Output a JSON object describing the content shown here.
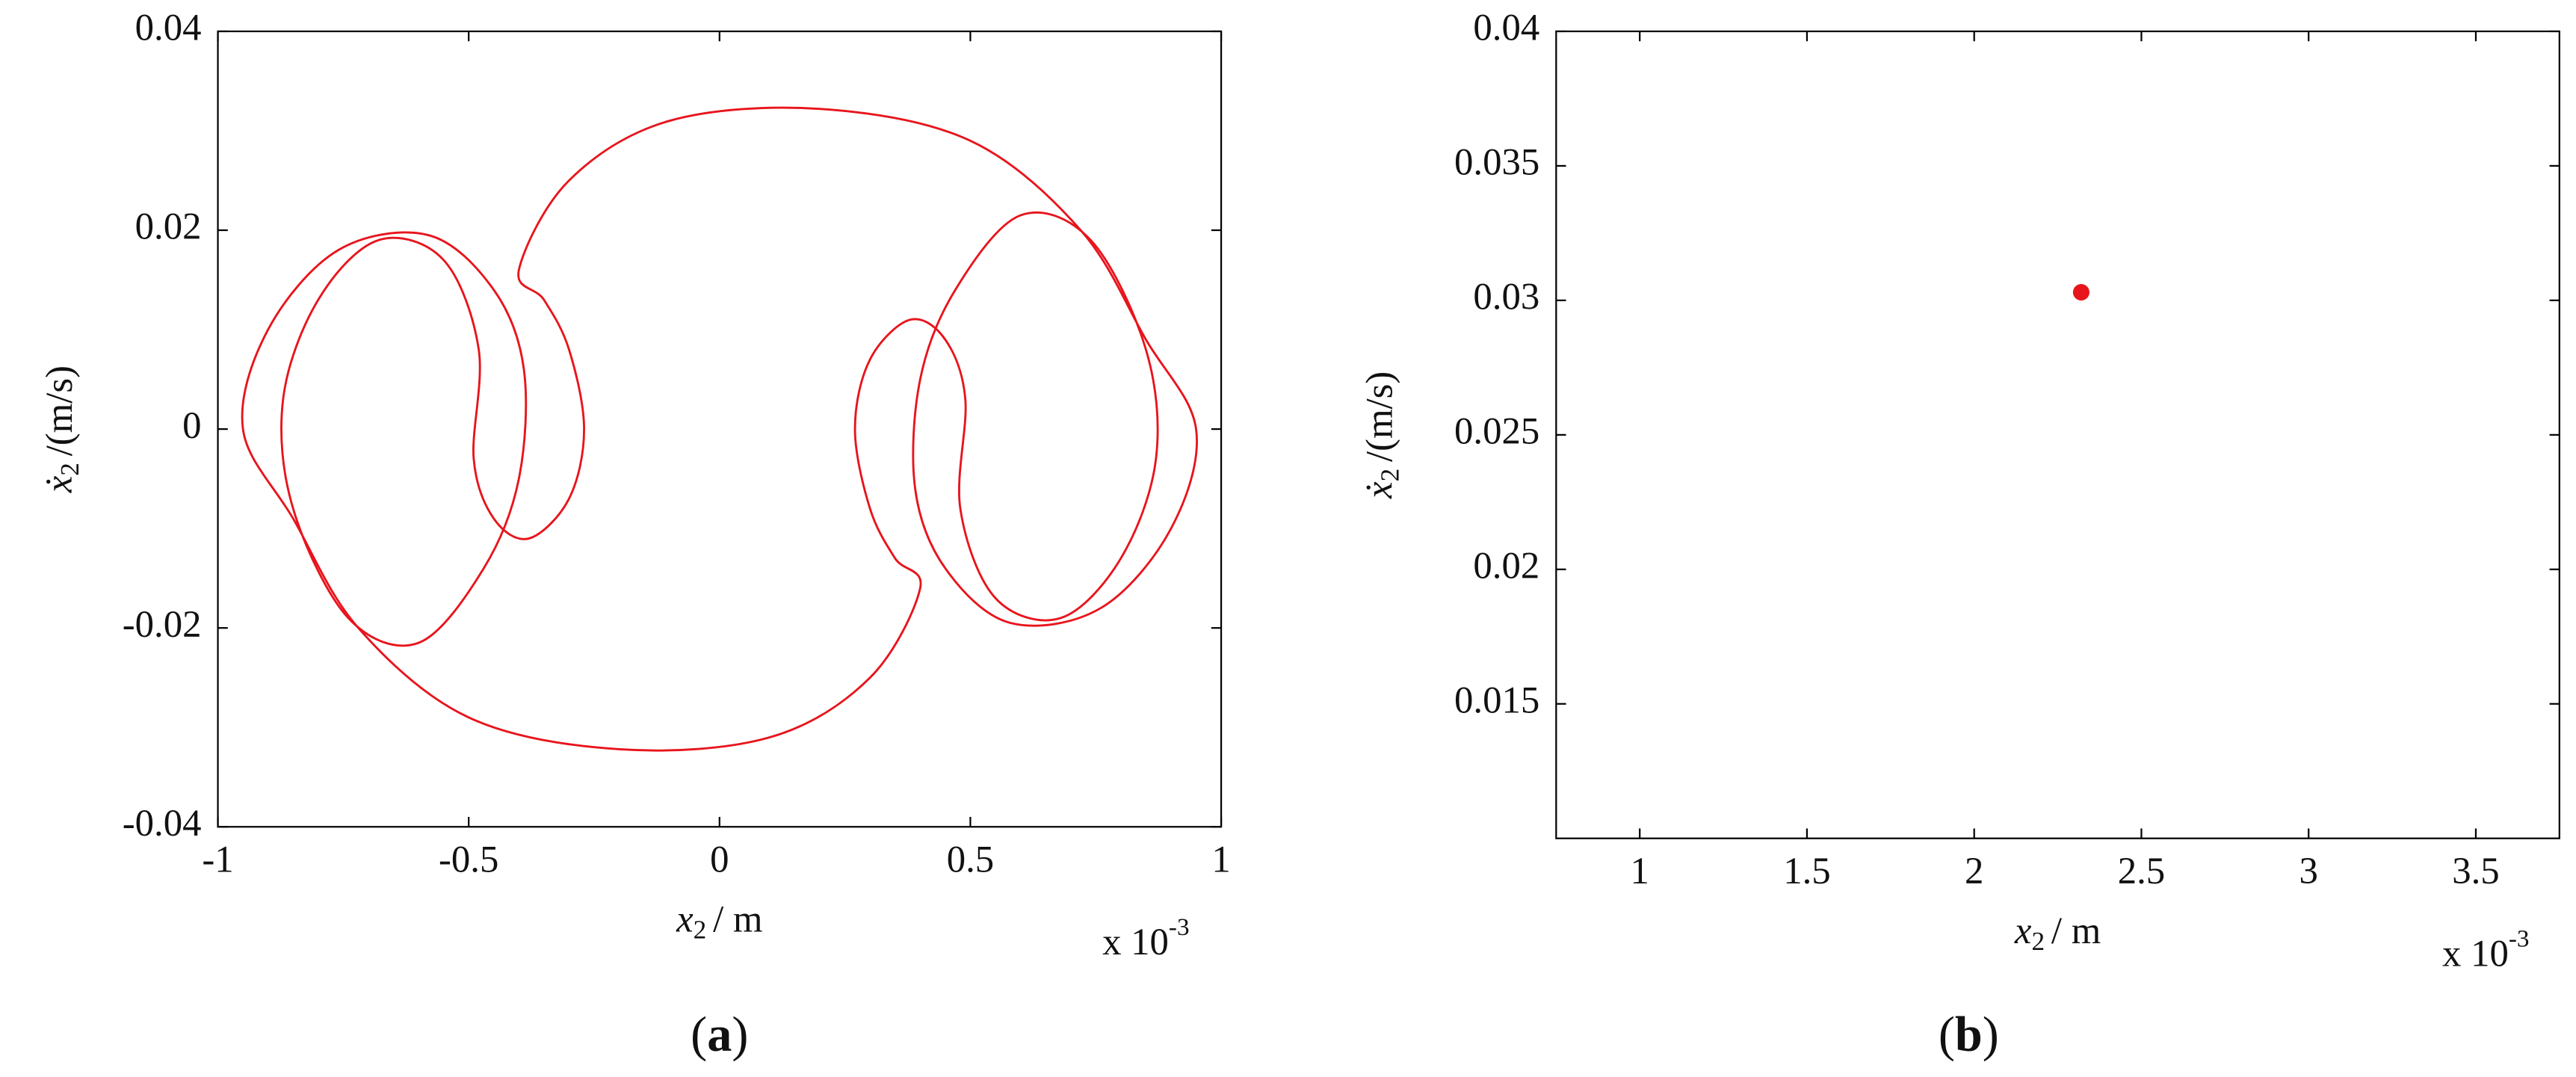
{
  "chart_data": [
    {
      "type": "line",
      "color": "#e8141c",
      "xlabel": {
        "symbol": "x",
        "subscript": "2",
        "unit": "/ m"
      },
      "ylabel": {
        "symbol": "ẋ",
        "subscript": "2",
        "unit": "/(m/s)"
      },
      "multiplier": {
        "base": "x 10",
        "exponent": "-3"
      },
      "caption": {
        "open": "(",
        "letter": "a",
        "close": ")"
      },
      "xlim": [
        -1,
        1
      ],
      "ylim": [
        -0.04,
        0.04
      ],
      "xticks": [
        -1,
        -0.5,
        0,
        0.5,
        1
      ],
      "yticks": [
        -0.04,
        -0.02,
        0,
        0.02,
        0.04
      ],
      "x": [
        -0.4,
        -0.3,
        -0.1,
        0.2,
        0.5,
        0.72,
        0.85,
        0.95,
        0.9,
        0.76,
        0.58,
        0.45,
        0.39,
        0.4,
        0.47,
        0.6,
        0.74,
        0.85,
        0.87,
        0.8,
        0.68,
        0.55,
        0.48,
        0.49,
        0.45,
        0.38,
        0.3,
        0.27,
        0.3,
        0.35,
        0.4,
        0.3,
        0.1,
        -0.2,
        -0.5,
        -0.72,
        -0.85,
        -0.95,
        -0.9,
        -0.76,
        -0.58,
        -0.45,
        -0.39,
        -0.4,
        -0.47,
        -0.6,
        -0.74,
        -0.85,
        -0.87,
        -0.8,
        -0.68,
        -0.55,
        -0.48,
        -0.49,
        -0.45,
        -0.38,
        -0.3,
        -0.27,
        -0.3,
        -0.35
      ],
      "y": [
        0.016,
        0.025,
        0.031,
        0.0322,
        0.029,
        0.02,
        0.009,
        0,
        -0.01,
        -0.018,
        -0.0195,
        -0.014,
        -0.006,
        0.005,
        0.014,
        0.0215,
        0.019,
        0.008,
        -0.003,
        -0.013,
        -0.019,
        -0.017,
        -0.008,
        0.003,
        0.009,
        0.011,
        0.007,
        0,
        -0.008,
        -0.013,
        -0.016,
        -0.025,
        -0.031,
        -0.0322,
        -0.029,
        -0.02,
        -0.009,
        0,
        0.01,
        0.018,
        0.0195,
        0.014,
        0.006,
        -0.005,
        -0.014,
        -0.0215,
        -0.019,
        -0.008,
        0.003,
        0.013,
        0.019,
        0.017,
        0.008,
        -0.003,
        -0.009,
        -0.011,
        -0.007,
        0,
        0.008,
        0.013
      ]
    },
    {
      "type": "scatter",
      "color": "#e8141c",
      "xlabel": {
        "symbol": "x",
        "subscript": "2",
        "unit": "/ m"
      },
      "ylabel": {
        "symbol": "ẋ",
        "subscript": "2",
        "unit": "/(m/s)"
      },
      "multiplier": {
        "base": "x 10",
        "exponent": "-3"
      },
      "caption": {
        "open": "(",
        "letter": "b",
        "close": ")"
      },
      "xlim": [
        0.75,
        3.75
      ],
      "ylim": [
        0.01,
        0.04
      ],
      "xticks": [
        1,
        1.5,
        2,
        2.5,
        3,
        3.5
      ],
      "yticks": [
        0.015,
        0.02,
        0.025,
        0.03,
        0.035,
        0.04
      ],
      "x": [
        2.32
      ],
      "y": [
        0.0303
      ]
    }
  ]
}
